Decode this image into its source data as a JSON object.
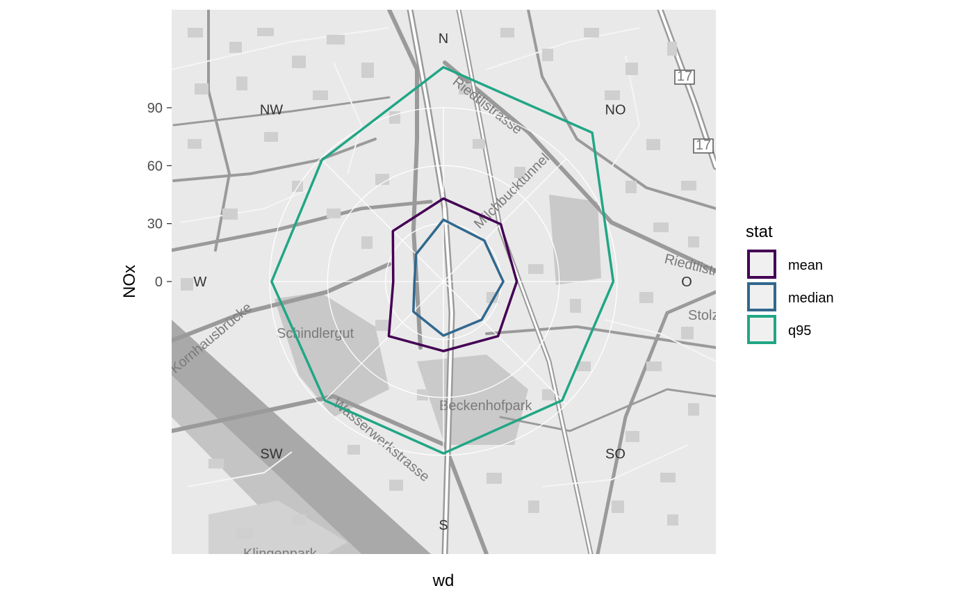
{
  "chart_data": {
    "type": "radar",
    "xlabel": "wd",
    "ylabel": "NOx",
    "radial_ticks": [
      0,
      30,
      60,
      90
    ],
    "rlim": [
      0,
      90
    ],
    "directions": [
      "N",
      "NO",
      "O",
      "SO",
      "S",
      "SW",
      "W",
      "NW"
    ],
    "series": [
      {
        "name": "mean",
        "color": "#440154",
        "values": [
          43,
          42,
          38,
          40,
          36,
          40,
          26,
          37
        ]
      },
      {
        "name": "median",
        "color": "#31688e",
        "values": [
          32,
          30,
          31,
          28,
          28,
          22,
          15,
          20
        ]
      },
      {
        "name": "q95",
        "color": "#21a685",
        "values": [
          111,
          109,
          88,
          87,
          89,
          87,
          89,
          89
        ]
      }
    ],
    "legend": {
      "title": "stat",
      "position": "right"
    },
    "background": {
      "type": "street-map",
      "labels": [
        "Riedtlistrasse",
        "Milchbucktunnel",
        "Schindlergut",
        "Beckenhofpark",
        "Wasserwerkstrasse",
        "Stolz",
        "Riedtlistr",
        "Klingenpark",
        "17",
        "Kornhausbrücke"
      ]
    }
  }
}
